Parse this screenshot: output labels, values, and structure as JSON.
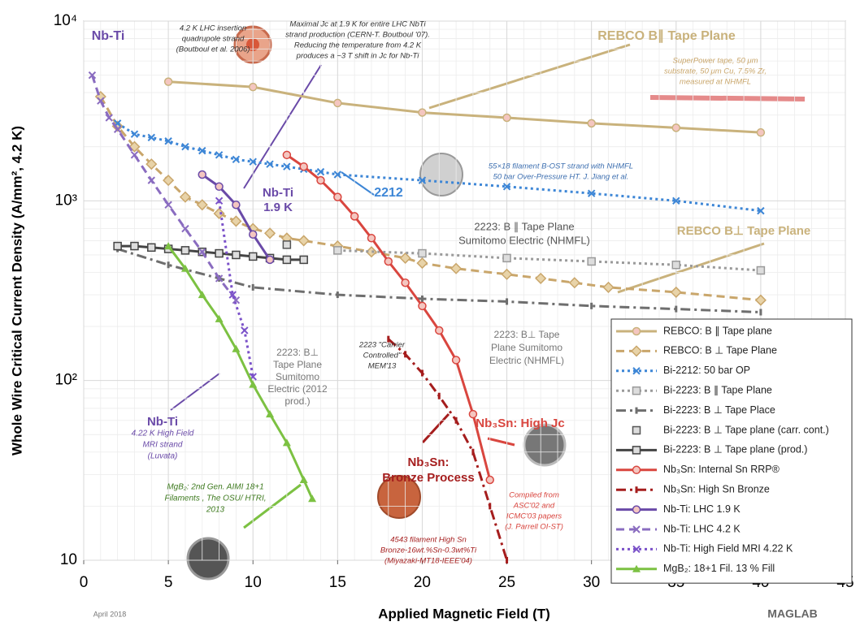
{
  "chart_data": {
    "type": "line",
    "xlabel": "Applied Magnetic Field (T)",
    "ylabel": "Whole Wire Critical Current Density (A/mm², 4.2 K)",
    "xlim": [
      0,
      45
    ],
    "xticks": [
      0,
      5,
      10,
      15,
      20,
      25,
      30,
      35,
      40,
      45
    ],
    "ylim": [
      10,
      10000
    ],
    "log_y": true,
    "grid": true,
    "yticks": [
      10,
      {
        "value": 100,
        "label": "10²"
      },
      {
        "value": 1000,
        "label": "10³"
      },
      {
        "value": 10000,
        "label": "10⁴"
      }
    ],
    "legend": "lower right",
    "series": [
      {
        "name": "REBCO: B ∥ Tape plane",
        "color": "#c9b27c",
        "style": "solid",
        "marker": "circle",
        "x": [
          5,
          10,
          15,
          20,
          25,
          30,
          35,
          40
        ],
        "values": [
          4600,
          4300,
          3500,
          3100,
          2900,
          2700,
          2550,
          2400
        ]
      },
      {
        "name": "REBCO: B ⊥ Tape Plane",
        "color": "#c9a66b",
        "style": "dashed",
        "marker": "diamond",
        "x": [
          1,
          2,
          3,
          4,
          5,
          6,
          7,
          8,
          9,
          10,
          11,
          12,
          13,
          15,
          17,
          19,
          20,
          22,
          25,
          27,
          29,
          31,
          35,
          40
        ],
        "values": [
          3800,
          2600,
          2000,
          1600,
          1300,
          1050,
          950,
          850,
          770,
          700,
          660,
          620,
          600,
          560,
          520,
          480,
          450,
          420,
          390,
          370,
          350,
          330,
          310,
          280
        ]
      },
      {
        "name": "Bi-2212: 50 bar OP",
        "color": "#3d86d6",
        "style": "dotted",
        "marker": "x",
        "x": [
          2,
          3,
          4,
          5,
          6,
          7,
          8,
          9,
          10,
          11,
          12,
          13,
          14,
          15,
          20,
          25,
          30,
          35,
          40
        ],
        "values": [
          2700,
          2350,
          2250,
          2150,
          2000,
          1900,
          1800,
          1700,
          1650,
          1600,
          1550,
          1500,
          1450,
          1400,
          1300,
          1200,
          1100,
          1000,
          880
        ]
      },
      {
        "name": "Bi-2223: B ∥ Tape Plane",
        "color": "#9a9a9a",
        "style": "dotted",
        "marker": "square",
        "x": [
          15,
          20,
          25,
          30,
          35,
          40
        ],
        "values": [
          530,
          510,
          480,
          460,
          440,
          410
        ]
      },
      {
        "name": "Bi-2223: B ⊥ Tape Place",
        "color": "#6e6e6e",
        "style": "dashdot",
        "marker": "bar",
        "x": [
          2,
          5,
          8,
          10,
          15,
          20,
          25,
          30,
          35,
          40
        ],
        "values": [
          540,
          440,
          370,
          330,
          300,
          285,
          275,
          260,
          250,
          240
        ]
      },
      {
        "name": "Bi-2223: B ⊥ Tape plane (carr. cont.)",
        "color": "#555555",
        "style": "none",
        "marker": "square",
        "x": [
          12
        ],
        "values": [
          570
        ]
      },
      {
        "name": "Bi-2223: B ⊥ Tape plane (prod.)",
        "color": "#444444",
        "style": "solid",
        "marker": "square",
        "x": [
          2,
          3,
          4,
          5,
          6,
          7,
          8,
          9,
          10,
          11,
          12,
          13
        ],
        "values": [
          560,
          560,
          550,
          540,
          530,
          520,
          510,
          500,
          490,
          480,
          470,
          470
        ]
      },
      {
        "name": "Nb₃Sn: Internal Sn RRP®",
        "color": "#d9463f",
        "style": "solid",
        "marker": "circle",
        "x": [
          12,
          13,
          14,
          15,
          16,
          17,
          18,
          19,
          20,
          21,
          22,
          23,
          24
        ],
        "values": [
          1800,
          1550,
          1300,
          1050,
          820,
          620,
          460,
          350,
          260,
          190,
          130,
          65,
          28
        ]
      },
      {
        "name": "Nb₃Sn: High Sn Bronze",
        "color": "#a51d1d",
        "style": "dashdot",
        "marker": "bar",
        "x": [
          18,
          19,
          20,
          21,
          22,
          23,
          24,
          25
        ],
        "values": [
          170,
          140,
          110,
          82,
          60,
          40,
          20,
          10
        ]
      },
      {
        "name": "Nb-Ti: LHC 1.9 K",
        "color": "#6a4aa8",
        "style": "solid",
        "marker": "circle",
        "x": [
          7,
          8,
          9,
          10,
          11
        ],
        "values": [
          1400,
          1200,
          950,
          650,
          470
        ]
      },
      {
        "name": "Nb-Ti: LHC 4.2 K",
        "color": "#8a6cc0",
        "style": "dashed",
        "marker": "x",
        "x": [
          0.5,
          1,
          1.5,
          2,
          3,
          4,
          5,
          6,
          7,
          8,
          9
        ],
        "values": [
          5000,
          3600,
          2900,
          2500,
          1800,
          1300,
          950,
          700,
          520,
          370,
          280
        ]
      },
      {
        "name": "Nb-Ti: High Field MRI 4.22 K",
        "color": "#7b52c9",
        "style": "dotted",
        "marker": "x",
        "x": [
          8,
          8.8,
          9.5,
          10
        ],
        "values": [
          1000,
          300,
          190,
          105
        ]
      },
      {
        "name": "MgB₂: 18+1 Fil. 13 % Fill",
        "color": "#7cc142",
        "style": "solid",
        "marker": "triangle",
        "x": [
          5,
          6,
          7,
          8,
          9,
          10,
          11,
          12,
          13,
          13.5
        ],
        "values": [
          560,
          420,
          300,
          220,
          150,
          95,
          65,
          45,
          28,
          22
        ]
      }
    ],
    "annotations": [
      [
        "Nb-Ti"
      ],
      [
        "4.2 K LHC insertion",
        "quadrupole strand",
        "(Boutboul et al. 2006)"
      ],
      [
        "Maximal Jc at 1.9 K for entire LHC NbTi",
        "strand production (CERN-T. Boutboul '07).",
        "Reducing the temperature from 4.2 K",
        "produces a ~3 T shift in Jc for Nb-Ti"
      ],
      [
        "REBCO B∥ Tape Plane"
      ],
      [
        "SuperPower tape, 50 μm",
        "substrate, 50 μm Cu, 7.5% Zr,",
        "measured at NHMFL"
      ],
      [
        "2212"
      ],
      [
        "55×18 filament B-OST strand with NHMFL",
        "50 bar Over-Pressure HT. J. Jiang et al."
      ],
      [
        "Nb-Ti",
        "1.9 K"
      ],
      [
        "2223: B ∥ Tape Plane",
        "Sumitomo Electric (NHMFL)"
      ],
      [
        "REBCO B⊥ Tape Plane"
      ],
      [
        "2223: B⊥",
        "Tape Plane",
        "Sumitomo",
        "Electric (2012",
        "prod.)"
      ],
      [
        "2223 \"Carrier",
        "Controlled\"",
        "MEM'13"
      ],
      [
        "2223: B⊥ Tape",
        "Plane Sumitomo",
        "Electric (NHMFL)"
      ],
      [
        "Nb-Ti",
        "4.22 K High Field",
        "MRI strand",
        "(Luvata)"
      ],
      [
        "Nb₃Sn: High Jc"
      ],
      [
        "Nb₃Sn:",
        "Bronze Process"
      ],
      [
        "4543 filament High Sn",
        "Bronze-16wt.%Sn-0.3wt%Ti",
        "(Miyazaki-MT18-IEEE'04)"
      ],
      [
        "Compiled from",
        "ASC'02 and",
        "ICMC'03 papers",
        "(J. Parrell OI-ST)"
      ],
      [
        "MgB₂: 2nd Gen. AIMI 18+1",
        "Filaments , The OSU/ HTRI,",
        "2013"
      ],
      [
        "April 2018"
      ],
      [
        "MAGLAB"
      ]
    ]
  }
}
